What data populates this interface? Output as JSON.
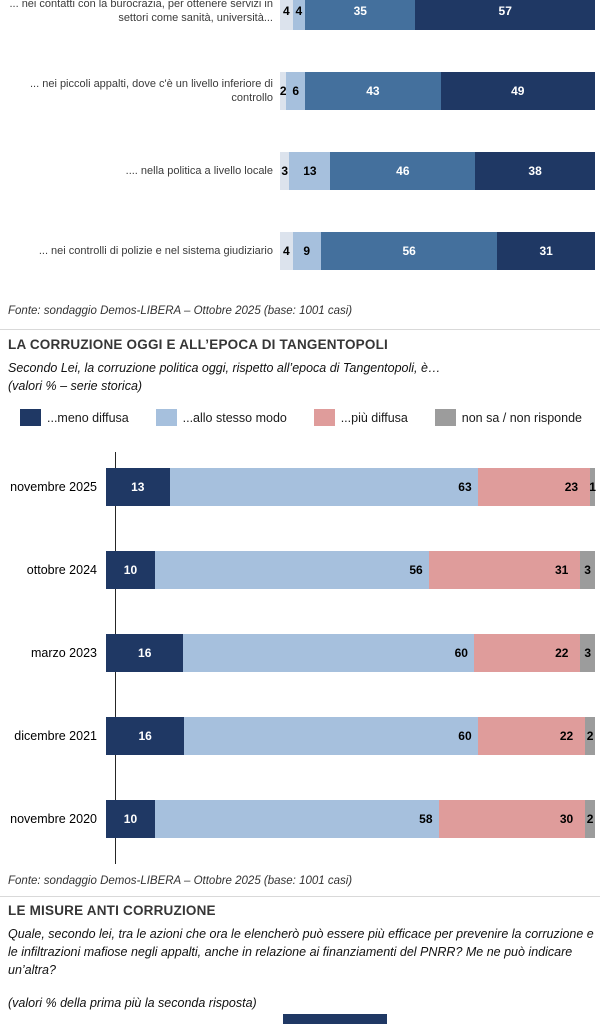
{
  "page": {
    "fonte1": "Fonte: sondaggio Demos-LIBERA – Ottobre 2025 (base: 1001 casi)",
    "fonte2": "Fonte: sondaggio Demos-LIBERA – Ottobre 2025 (base: 1001 casi)",
    "section1": {
      "title": "LA CORRUZIONE OGGI E ALL’EPOCA DI TANGENTOPOLI",
      "question": "Secondo Lei, la corruzione politica oggi, rispetto all’epoca di Tangentopoli, è…",
      "note": "(valori % – serie storica)"
    },
    "section2": {
      "title": "LE MISURE ANTI CORRUZIONE",
      "question": "Quale, secondo lei, tra le azioni che ora le elencherò può essere più efficace per prevenire la corruzione e le infiltrazioni mafiose negli appalti, anche in relazione ai finanziamenti del PNRR? Me ne può indicare un’altra?",
      "note": "(valori % della prima più la seconda risposta)"
    }
  },
  "legend": [
    {
      "label": "...meno diffusa",
      "color": "#1F3864"
    },
    {
      "label": "...allo stesso modo",
      "color": "#A6C0DD"
    },
    {
      "label": "...più diffusa",
      "color": "#DF9C9B"
    },
    {
      "label": "non sa / non risponde",
      "color": "#9C9C9C"
    }
  ],
  "chart_data": [
    {
      "type": "bar",
      "orientation": "horizontal-stacked",
      "xlim": [
        0,
        100
      ],
      "categories": [
        "... nei contatti con la burocrazia, per ottenere servizi in settori come sanità, università...",
        "... nei piccoli appalti, dove c'è un livello inferiore di controllo",
        ".... nella politica a livello locale",
        "... nei controlli di polizie e nel sistema giudiziario"
      ],
      "series": [
        {
          "name": "segment-1",
          "color": "#DCE3ED",
          "values": [
            4,
            2,
            3,
            4
          ]
        },
        {
          "name": "segment-2",
          "color": "#A6C0DD",
          "values": [
            4,
            6,
            13,
            9
          ]
        },
        {
          "name": "segment-3",
          "color": "#44709D",
          "values": [
            35,
            43,
            46,
            56
          ]
        },
        {
          "name": "segment-4",
          "color": "#1F3864",
          "values": [
            57,
            49,
            38,
            31
          ]
        }
      ]
    },
    {
      "type": "bar",
      "orientation": "horizontal-stacked",
      "title": "LA CORRUZIONE OGGI E ALL’EPOCA DI TANGENTOPOLI",
      "xlim": [
        0,
        100
      ],
      "legend_position": "top",
      "categories": [
        "novembre 2025",
        "ottobre 2024",
        "marzo 2023",
        "dicembre 2021",
        "novembre 2020"
      ],
      "series": [
        {
          "name": "...meno diffusa",
          "color": "#1F3864",
          "values": [
            13,
            10,
            16,
            16,
            10
          ]
        },
        {
          "name": "...allo stesso modo",
          "color": "#A6C0DD",
          "values": [
            63,
            56,
            60,
            60,
            58
          ]
        },
        {
          "name": "...più diffusa",
          "color": "#DF9C9B",
          "values": [
            23,
            31,
            22,
            22,
            30
          ]
        },
        {
          "name": "non sa / non risponde",
          "color": "#9C9C9C",
          "values": [
            1,
            3,
            3,
            2,
            2
          ]
        }
      ]
    }
  ]
}
